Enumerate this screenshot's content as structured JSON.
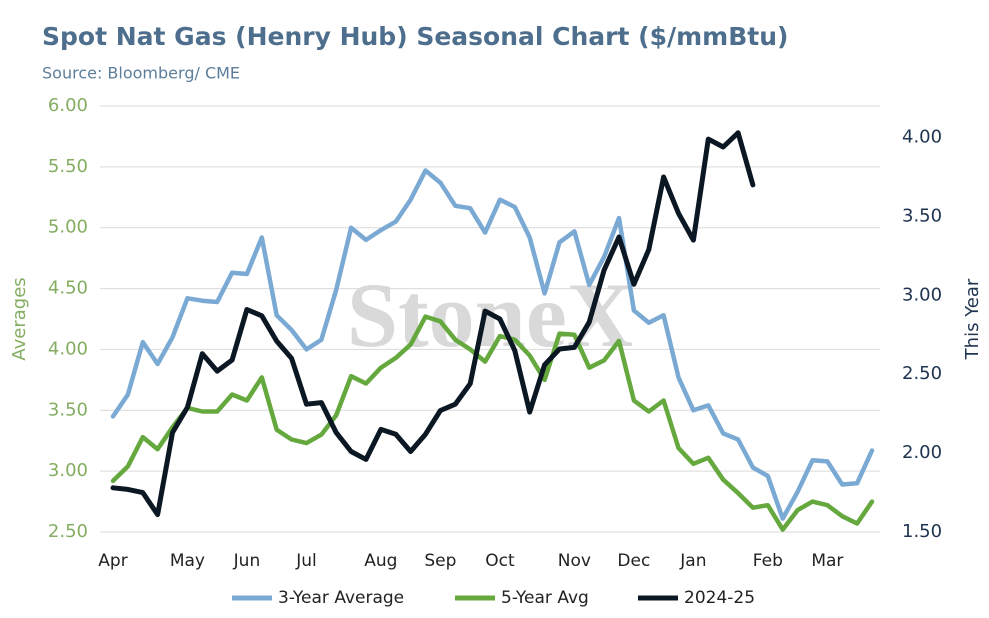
{
  "chart_data": {
    "type": "line",
    "title": "Spot Nat Gas (Henry Hub) Seasonal Chart ($/mmBtu)",
    "subtitle": "Source: Bloomberg/ CME",
    "watermark": "StoneX",
    "ylabel": "Averages",
    "y2label": "This Year",
    "categories": [
      "Apr",
      null,
      null,
      null,
      null,
      "May",
      null,
      null,
      null,
      "Jun",
      null,
      null,
      null,
      "Jul",
      null,
      null,
      null,
      null,
      "Aug",
      null,
      null,
      null,
      "Sep",
      null,
      null,
      null,
      "Oct",
      null,
      null,
      null,
      null,
      "Nov",
      null,
      null,
      null,
      "Dec",
      null,
      null,
      null,
      "Jan",
      null,
      null,
      null,
      null,
      "Feb",
      null,
      null,
      null,
      "Mar",
      null,
      null,
      null
    ],
    "ylim": [
      2.5,
      6.0
    ],
    "yticks": [
      {
        "value": 2.5,
        "label": "2.50"
      },
      {
        "value": 3,
        "label": "3.00"
      },
      {
        "value": 3.5,
        "label": "3.50"
      },
      {
        "value": 4,
        "label": "4.00"
      },
      {
        "value": 4.5,
        "label": "4.50"
      },
      {
        "value": 5,
        "label": "5.00"
      },
      {
        "value": 5.5,
        "label": "5.50"
      },
      {
        "value": 6,
        "label": "6.00"
      }
    ],
    "y2lim": [
      1.5,
      4.2
    ],
    "y2ticks": [
      {
        "value": 1.5,
        "label": "1.50"
      },
      {
        "value": 2,
        "label": "2.00"
      },
      {
        "value": 2.5,
        "label": "2.50"
      },
      {
        "value": 3,
        "label": "3.00"
      },
      {
        "value": 3.5,
        "label": "3.50"
      },
      {
        "value": 4,
        "label": "4.00"
      }
    ],
    "grid": true,
    "legend": "bottom",
    "series": [
      {
        "name": "3-Year Average",
        "color": "#7aaad4",
        "values": [
          3.45,
          3.63,
          4.06,
          3.88,
          4.1,
          4.42,
          4.4,
          4.39,
          4.63,
          4.62,
          4.92,
          4.28,
          4.16,
          4.0,
          4.08,
          4.49,
          5.0,
          4.9,
          4.98,
          5.05,
          5.23,
          5.47,
          5.37,
          5.18,
          5.16,
          4.96,
          5.23,
          5.17,
          4.92,
          4.46,
          4.88,
          4.97,
          4.53,
          4.76,
          5.08,
          4.32,
          4.22,
          4.28,
          3.77,
          3.5,
          3.54,
          3.31,
          3.26,
          3.03,
          2.96,
          2.61,
          2.83,
          3.09,
          3.08,
          2.89,
          2.9,
          3.17
        ]
      },
      {
        "name": "5-Year Avg",
        "color": "#65a83e",
        "values": [
          2.92,
          3.04,
          3.28,
          3.18,
          3.36,
          3.52,
          3.49,
          3.49,
          3.63,
          3.58,
          3.77,
          3.34,
          3.26,
          3.23,
          3.3,
          3.46,
          3.78,
          3.72,
          3.85,
          3.93,
          4.04,
          4.27,
          4.23,
          4.08,
          4.0,
          3.9,
          4.11,
          4.08,
          3.95,
          3.75,
          4.13,
          4.12,
          3.85,
          3.91,
          4.07,
          3.58,
          3.49,
          3.58,
          3.19,
          3.06,
          3.11,
          2.93,
          2.82,
          2.7,
          2.72,
          2.52,
          2.68,
          2.75,
          2.72,
          2.63,
          2.57,
          2.75
        ]
      },
      {
        "name": "2024-25",
        "color": "#0c1724",
        "axis": "y2",
        "values": [
          1.78,
          1.77,
          1.75,
          1.61,
          2.13,
          2.29,
          2.63,
          2.52,
          2.59,
          2.91,
          2.87,
          2.71,
          2.6,
          2.31,
          2.32,
          2.13,
          2.01,
          1.96,
          2.15,
          2.12,
          2.01,
          2.12,
          2.27,
          2.31,
          2.44,
          2.9,
          2.85,
          2.65,
          2.26,
          2.56,
          2.66,
          2.67,
          2.83,
          3.16,
          3.37,
          3.07,
          3.29,
          3.75,
          3.52,
          3.35,
          3.99,
          3.94,
          4.03,
          3.7,
          null,
          null,
          null,
          null,
          null,
          null,
          null,
          null
        ]
      }
    ]
  }
}
